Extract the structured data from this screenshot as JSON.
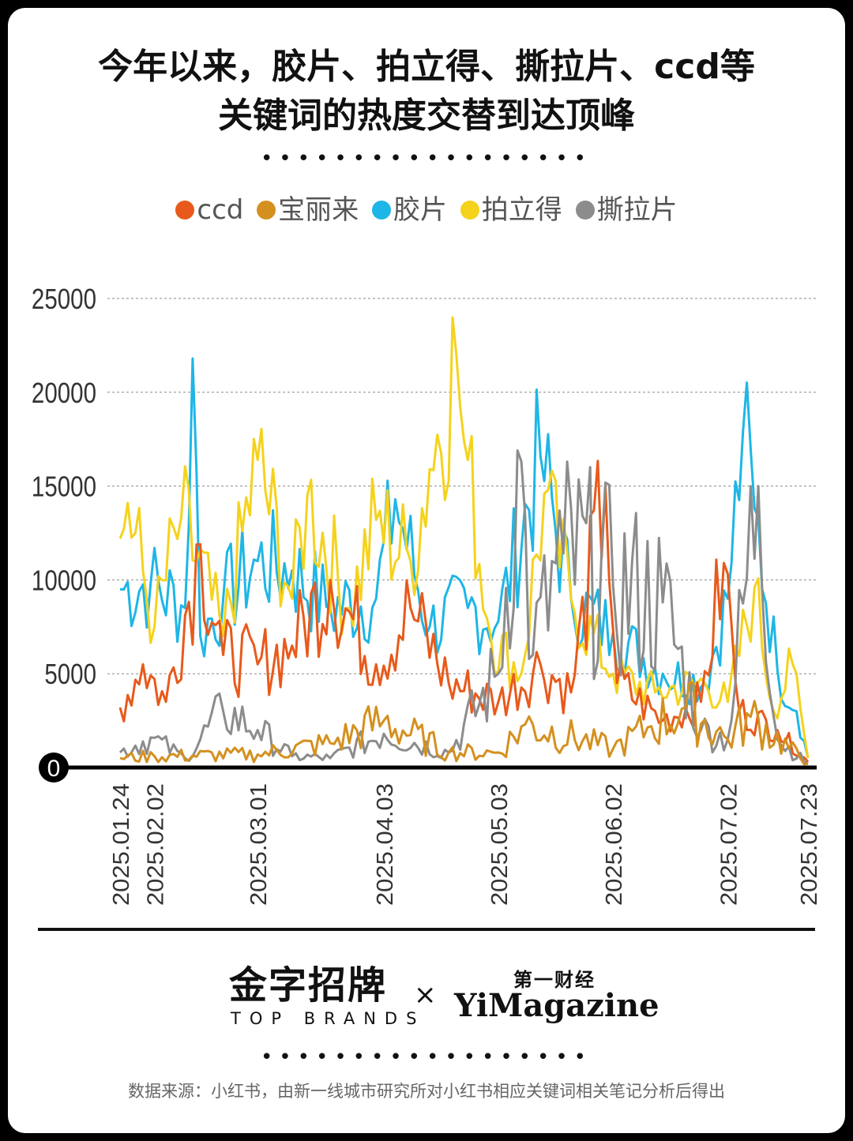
{
  "header": {
    "title_line1": "今年以来，胶片、拍立得、撕拉片、ccd等",
    "title_line2": "关键词的热度交替到达顶峰",
    "divider": "••••••••••••••••••"
  },
  "legend": [
    {
      "name": "ccd",
      "color": "#E85A1B"
    },
    {
      "name": "宝丽来",
      "color": "#D4901F"
    },
    {
      "name": "胶片",
      "color": "#1EB6E6"
    },
    {
      "name": "拍立得",
      "color": "#F5D21C"
    },
    {
      "name": "撕拉片",
      "color": "#8C8C8C"
    }
  ],
  "chart_data": {
    "type": "line",
    "title": "今年以来，胶片、拍立得、撕拉片、ccd等关键词的热度交替到达顶峰",
    "x_start": "2025-01-24",
    "x_end": "2025-07-23",
    "x_tick_labels": [
      "2025.01.24",
      "2025.02.02",
      "2025.03.01",
      "2025.04.03",
      "2025.05.03",
      "2025.06.02",
      "2025.07.02",
      "2025.07.23"
    ],
    "x_tick_dates": [
      "2025-01-24",
      "2025-02-02",
      "2025-03-01",
      "2025-04-03",
      "2025-05-03",
      "2025-06-02",
      "2025-07-02",
      "2025-07-23"
    ],
    "y_ticks": [
      0,
      5000,
      10000,
      15000,
      20000,
      25000
    ],
    "y_tick_labels": [
      "0",
      "5000",
      "10000",
      "15000",
      "20000",
      "25000"
    ],
    "ylim": [
      0,
      25000
    ],
    "grid": "horizontal dashed",
    "legend_position": "top",
    "series": [
      {
        "name": "胶片",
        "color": "#1EB6E6",
        "values": [
          [
            "2025-01-24",
            9500
          ],
          [
            "2025-02-01",
            9800
          ],
          [
            "2025-02-10",
            8500
          ],
          [
            "2025-02-12",
            21800
          ],
          [
            "2025-02-14",
            7000
          ],
          [
            "2025-02-20",
            9000
          ],
          [
            "2025-03-01",
            11000
          ],
          [
            "2025-03-10",
            10500
          ],
          [
            "2025-03-20",
            8500
          ],
          [
            "2025-04-01",
            9000
          ],
          [
            "2025-04-06",
            14300
          ],
          [
            "2025-04-15",
            7500
          ],
          [
            "2025-04-25",
            8500
          ],
          [
            "2025-05-03",
            7800
          ],
          [
            "2025-05-14",
            16600
          ],
          [
            "2025-05-22",
            9000
          ],
          [
            "2025-06-02",
            7200
          ],
          [
            "2025-06-15",
            5000
          ],
          [
            "2025-06-26",
            4500
          ],
          [
            "2025-07-02",
            9000
          ],
          [
            "2025-07-06",
            17900
          ],
          [
            "2025-07-09",
            13800
          ],
          [
            "2025-07-15",
            5200
          ],
          [
            "2025-07-20",
            3000
          ],
          [
            "2025-07-23",
            500
          ]
        ]
      },
      {
        "name": "拍立得",
        "color": "#F5D21C",
        "values": [
          [
            "2025-01-24",
            12200
          ],
          [
            "2025-01-26",
            14100
          ],
          [
            "2025-02-02",
            7500
          ],
          [
            "2025-02-09",
            13300
          ],
          [
            "2025-02-20",
            7000
          ],
          [
            "2025-03-01",
            16400
          ],
          [
            "2025-03-10",
            9000
          ],
          [
            "2025-03-14",
            14500
          ],
          [
            "2025-03-25",
            8500
          ],
          [
            "2025-04-01",
            13200
          ],
          [
            "2025-04-10",
            11000
          ],
          [
            "2025-04-15",
            15900
          ],
          [
            "2025-04-22",
            22000
          ],
          [
            "2025-04-24",
            17400
          ],
          [
            "2025-05-01",
            7000
          ],
          [
            "2025-05-09",
            5000
          ],
          [
            "2025-05-15",
            14600
          ],
          [
            "2025-05-22",
            9000
          ],
          [
            "2025-06-02",
            5000
          ],
          [
            "2025-06-13",
            4000
          ],
          [
            "2025-06-26",
            4500
          ],
          [
            "2025-07-02",
            3500
          ],
          [
            "2025-07-09",
            9600
          ],
          [
            "2025-07-14",
            3000
          ],
          [
            "2025-07-19",
            5500
          ],
          [
            "2025-07-23",
            500
          ]
        ]
      },
      {
        "name": "ccd",
        "color": "#E85A1B",
        "values": [
          [
            "2025-01-24",
            3200
          ],
          [
            "2025-01-30",
            5500
          ],
          [
            "2025-02-05",
            3500
          ],
          [
            "2025-02-14",
            11900
          ],
          [
            "2025-02-20",
            6000
          ],
          [
            "2025-03-01",
            5500
          ],
          [
            "2025-03-10",
            6500
          ],
          [
            "2025-03-20",
            10000
          ],
          [
            "2025-04-01",
            5500
          ],
          [
            "2025-04-10",
            8500
          ],
          [
            "2025-04-20",
            4500
          ],
          [
            "2025-05-03",
            3500
          ],
          [
            "2025-05-14",
            5500
          ],
          [
            "2025-05-22",
            4000
          ],
          [
            "2025-05-31",
            15000
          ],
          [
            "2025-06-03",
            4500
          ],
          [
            "2025-06-15",
            2500
          ],
          [
            "2025-06-25",
            3500
          ],
          [
            "2025-07-01",
            10900
          ],
          [
            "2025-07-05",
            3000
          ],
          [
            "2025-07-15",
            2000
          ],
          [
            "2025-07-23",
            300
          ]
        ]
      },
      {
        "name": "撕拉片",
        "color": "#8C8C8C",
        "values": [
          [
            "2025-01-24",
            800
          ],
          [
            "2025-02-01",
            1600
          ],
          [
            "2025-02-10",
            500
          ],
          [
            "2025-02-20",
            3000
          ],
          [
            "2025-03-01",
            2000
          ],
          [
            "2025-03-10",
            600
          ],
          [
            "2025-03-20",
            500
          ],
          [
            "2025-04-03",
            1800
          ],
          [
            "2025-04-20",
            800
          ],
          [
            "2025-05-03",
            5000
          ],
          [
            "2025-05-08",
            16900
          ],
          [
            "2025-05-12",
            6000
          ],
          [
            "2025-05-20",
            11400
          ],
          [
            "2025-06-02",
            9700
          ],
          [
            "2025-06-15",
            8800
          ],
          [
            "2025-06-25",
            2000
          ],
          [
            "2025-07-02",
            1500
          ],
          [
            "2025-07-10",
            15000
          ],
          [
            "2025-07-15",
            1500
          ],
          [
            "2025-07-23",
            200
          ]
        ]
      },
      {
        "name": "宝丽来",
        "color": "#D4901F",
        "values": [
          [
            "2025-01-24",
            500
          ],
          [
            "2025-02-02",
            600
          ],
          [
            "2025-03-01",
            700
          ],
          [
            "2025-03-20",
            1300
          ],
          [
            "2025-04-03",
            2500
          ],
          [
            "2025-04-20",
            800
          ],
          [
            "2025-05-03",
            800
          ],
          [
            "2025-05-10",
            2300
          ],
          [
            "2025-06-02",
            1000
          ],
          [
            "2025-06-12",
            2200
          ],
          [
            "2025-06-21",
            3200
          ],
          [
            "2025-07-02",
            1500
          ],
          [
            "2025-07-08",
            2700
          ],
          [
            "2025-07-23",
            200
          ]
        ]
      }
    ]
  },
  "footer": {
    "logo_jzzp": "金字招牌",
    "logo_top_brands": "TOP BRANDS",
    "logo_times": "×",
    "logo_dycj": "第一财经",
    "logo_yimagazine": "YiMagazine",
    "divider": "••••••••••••••••••",
    "source": "数据来源：小红书，由新一线城市研究所对小红书相应关键词相关笔记分析后得出"
  }
}
